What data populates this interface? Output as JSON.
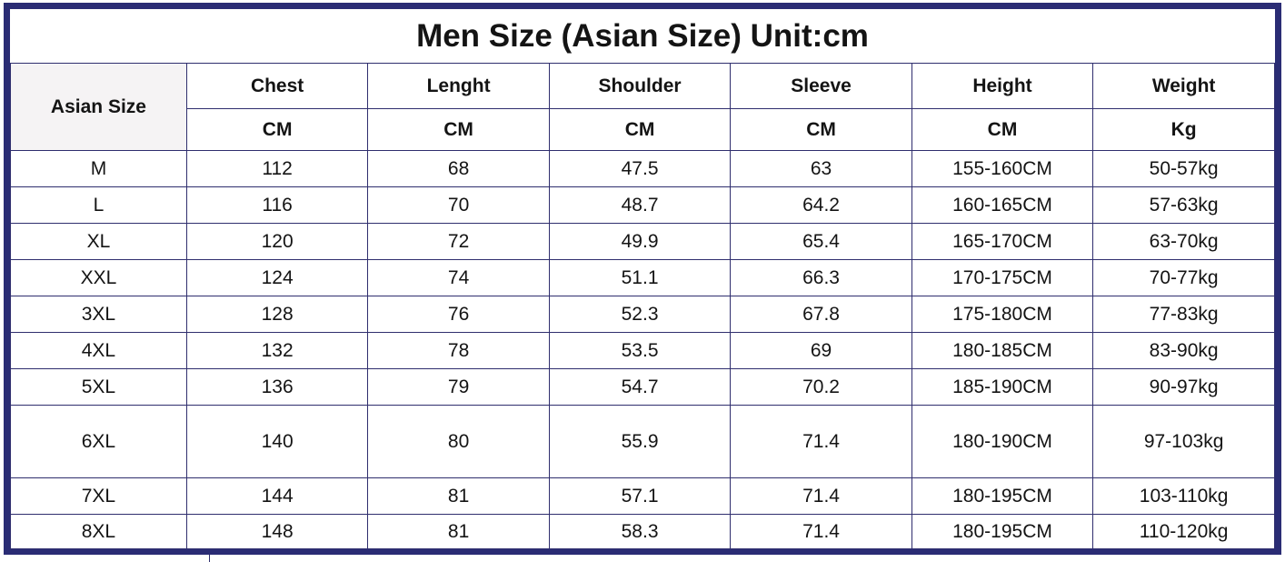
{
  "title": "Men Size (Asian Size) Unit:cm",
  "colors": {
    "border_thick": "#2a2c74",
    "border_thin": "#2f2e6e",
    "text": "#141414",
    "corner_bg": "#f5f3f4"
  },
  "chart_data": {
    "type": "table",
    "title": "Men Size (Asian Size) Unit:cm",
    "corner_header": "Asian Size",
    "columns": [
      {
        "label": "Chest",
        "unit": "CM"
      },
      {
        "label": "Lenght",
        "unit": "CM"
      },
      {
        "label": "Shoulder",
        "unit": "CM"
      },
      {
        "label": "Sleeve",
        "unit": "CM"
      },
      {
        "label": "Height",
        "unit": "CM"
      },
      {
        "label": "Weight",
        "unit": "Kg"
      }
    ],
    "rows": [
      {
        "size": "M",
        "values": [
          "112",
          "68",
          "47.5",
          "63",
          "155-160CM",
          "50-57kg"
        ]
      },
      {
        "size": "L",
        "values": [
          "116",
          "70",
          "48.7",
          "64.2",
          "160-165CM",
          "57-63kg"
        ]
      },
      {
        "size": "XL",
        "values": [
          "120",
          "72",
          "49.9",
          "65.4",
          "165-170CM",
          "63-70kg"
        ]
      },
      {
        "size": "XXL",
        "values": [
          "124",
          "74",
          "51.1",
          "66.3",
          "170-175CM",
          "70-77kg"
        ]
      },
      {
        "size": "3XL",
        "values": [
          "128",
          "76",
          "52.3",
          "67.8",
          "175-180CM",
          "77-83kg"
        ]
      },
      {
        "size": "4XL",
        "values": [
          "132",
          "78",
          "53.5",
          "69",
          "180-185CM",
          "83-90kg"
        ]
      },
      {
        "size": "5XL",
        "values": [
          "136",
          "79",
          "54.7",
          "70.2",
          "185-190CM",
          "90-97kg"
        ]
      },
      {
        "size": "6XL",
        "values": [
          "140",
          "80",
          "55.9",
          "71.4",
          "180-190CM",
          "97-103kg"
        ]
      },
      {
        "size": "7XL",
        "values": [
          "144",
          "81",
          "57.1",
          "71.4",
          "180-195CM",
          "103-110kg"
        ]
      },
      {
        "size": "8XL",
        "values": [
          "148",
          "81",
          "58.3",
          "71.4",
          "180-195CM",
          "110-120kg"
        ]
      }
    ]
  }
}
